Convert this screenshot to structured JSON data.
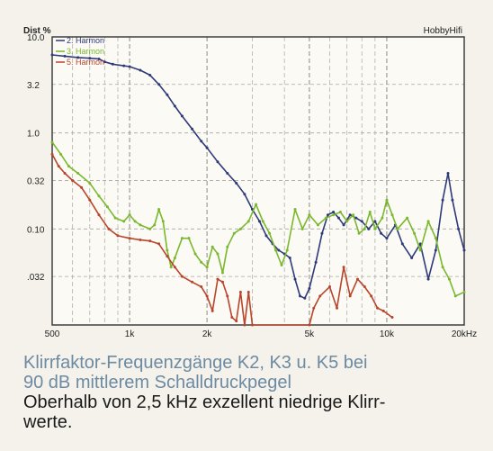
{
  "chart_data": {
    "type": "line",
    "ylabel": "Dist %",
    "xlabel": "",
    "brand": "HobbyHifi",
    "xscale": "log",
    "yscale": "log",
    "xlim": [
      500,
      20000
    ],
    "ylim": [
      0.01,
      10
    ],
    "x_ticks": [
      {
        "value": 500,
        "label": "500"
      },
      {
        "value": 1000,
        "label": "1k"
      },
      {
        "value": 2000,
        "label": "2k"
      },
      {
        "value": 5000,
        "label": "5k"
      },
      {
        "value": 10000,
        "label": "10k"
      },
      {
        "value": 20000,
        "label": "20kHz"
      }
    ],
    "y_ticks": [
      {
        "value": 10,
        "label": "10.0"
      },
      {
        "value": 3.2,
        "label": "3.2"
      },
      {
        "value": 1.0,
        "label": "1.0"
      },
      {
        "value": 0.32,
        "label": "0.32"
      },
      {
        "value": 0.1,
        "label": "0.10"
      },
      {
        "value": 0.032,
        "label": ".032"
      }
    ],
    "grid": true,
    "legend_position": "top-left",
    "series": [
      {
        "name": "2. Harmon",
        "color": "#2e3a7a",
        "points": [
          [
            500,
            6.5
          ],
          [
            560,
            6.3
          ],
          [
            630,
            6.1
          ],
          [
            700,
            6.0
          ],
          [
            760,
            5.9
          ],
          [
            800,
            5.5
          ],
          [
            860,
            5.2
          ],
          [
            950,
            5.0
          ],
          [
            1000,
            4.9
          ],
          [
            1100,
            4.5
          ],
          [
            1200,
            4.0
          ],
          [
            1300,
            3.2
          ],
          [
            1400,
            2.5
          ],
          [
            1500,
            1.9
          ],
          [
            1600,
            1.5
          ],
          [
            1750,
            1.1
          ],
          [
            1900,
            0.82
          ],
          [
            2000,
            0.7
          ],
          [
            2200,
            0.5
          ],
          [
            2400,
            0.38
          ],
          [
            2600,
            0.3
          ],
          [
            2800,
            0.23
          ],
          [
            3000,
            0.16
          ],
          [
            3200,
            0.12
          ],
          [
            3400,
            0.085
          ],
          [
            3600,
            0.07
          ],
          [
            3800,
            0.06
          ],
          [
            4000,
            0.055
          ],
          [
            4200,
            0.05
          ],
          [
            4400,
            0.03
          ],
          [
            4600,
            0.02
          ],
          [
            4800,
            0.019
          ],
          [
            5000,
            0.024
          ],
          [
            5300,
            0.045
          ],
          [
            5600,
            0.09
          ],
          [
            5900,
            0.14
          ],
          [
            6200,
            0.15
          ],
          [
            6500,
            0.13
          ],
          [
            6800,
            0.11
          ],
          [
            7200,
            0.14
          ],
          [
            7600,
            0.13
          ],
          [
            8000,
            0.12
          ],
          [
            8500,
            0.1
          ],
          [
            9000,
            0.12
          ],
          [
            9500,
            0.09
          ],
          [
            10000,
            0.08
          ],
          [
            10800,
            0.11
          ],
          [
            11500,
            0.07
          ],
          [
            12500,
            0.05
          ],
          [
            13500,
            0.07
          ],
          [
            14500,
            0.03
          ],
          [
            15500,
            0.06
          ],
          [
            16500,
            0.2
          ],
          [
            17300,
            0.38
          ],
          [
            18000,
            0.2
          ],
          [
            19000,
            0.1
          ],
          [
            20000,
            0.06
          ]
        ]
      },
      {
        "name": "3. Harmon",
        "color": "#7ab82e",
        "points": [
          [
            500,
            0.8
          ],
          [
            540,
            0.6
          ],
          [
            580,
            0.45
          ],
          [
            630,
            0.38
          ],
          [
            700,
            0.3
          ],
          [
            760,
            0.22
          ],
          [
            820,
            0.17
          ],
          [
            880,
            0.13
          ],
          [
            950,
            0.12
          ],
          [
            1000,
            0.14
          ],
          [
            1050,
            0.12
          ],
          [
            1100,
            0.11
          ],
          [
            1200,
            0.1
          ],
          [
            1250,
            0.11
          ],
          [
            1300,
            0.16
          ],
          [
            1350,
            0.12
          ],
          [
            1400,
            0.06
          ],
          [
            1450,
            0.04
          ],
          [
            1500,
            0.05
          ],
          [
            1600,
            0.08
          ],
          [
            1700,
            0.08
          ],
          [
            1800,
            0.055
          ],
          [
            1900,
            0.045
          ],
          [
            2000,
            0.04
          ],
          [
            2100,
            0.065
          ],
          [
            2200,
            0.055
          ],
          [
            2300,
            0.035
          ],
          [
            2400,
            0.065
          ],
          [
            2550,
            0.09
          ],
          [
            2700,
            0.1
          ],
          [
            2900,
            0.12
          ],
          [
            3100,
            0.18
          ],
          [
            3300,
            0.12
          ],
          [
            3500,
            0.09
          ],
          [
            3700,
            0.06
          ],
          [
            3900,
            0.042
          ],
          [
            4100,
            0.06
          ],
          [
            4400,
            0.16
          ],
          [
            4700,
            0.1
          ],
          [
            5000,
            0.14
          ],
          [
            5400,
            0.11
          ],
          [
            5800,
            0.13
          ],
          [
            6200,
            0.14
          ],
          [
            6600,
            0.15
          ],
          [
            7000,
            0.12
          ],
          [
            7400,
            0.14
          ],
          [
            7800,
            0.09
          ],
          [
            8200,
            0.1
          ],
          [
            8600,
            0.15
          ],
          [
            9000,
            0.1
          ],
          [
            9600,
            0.13
          ],
          [
            10000,
            0.2
          ],
          [
            10500,
            0.14
          ],
          [
            11000,
            0.1
          ],
          [
            12000,
            0.13
          ],
          [
            12800,
            0.09
          ],
          [
            13500,
            0.06
          ],
          [
            14500,
            0.12
          ],
          [
            15500,
            0.08
          ],
          [
            16500,
            0.04
          ],
          [
            17500,
            0.03
          ],
          [
            18500,
            0.02
          ],
          [
            20000,
            0.022
          ]
        ]
      },
      {
        "name": "5. Harmon",
        "color": "#b8452c",
        "points": [
          [
            500,
            0.6
          ],
          [
            530,
            0.45
          ],
          [
            560,
            0.38
          ],
          [
            600,
            0.32
          ],
          [
            650,
            0.27
          ],
          [
            700,
            0.2
          ],
          [
            760,
            0.14
          ],
          [
            830,
            0.1
          ],
          [
            900,
            0.085
          ],
          [
            1000,
            0.08
          ],
          [
            1100,
            0.077
          ],
          [
            1200,
            0.075
          ],
          [
            1300,
            0.07
          ],
          [
            1400,
            0.052
          ],
          [
            1500,
            0.04
          ],
          [
            1600,
            0.032
          ],
          [
            1750,
            0.028
          ],
          [
            1900,
            0.025
          ],
          [
            2000,
            0.02
          ],
          [
            2100,
            0.014
          ],
          [
            2200,
            0.03
          ],
          [
            2300,
            0.028
          ],
          [
            2400,
            0.02
          ],
          [
            2500,
            0.012
          ],
          [
            2600,
            0.011
          ],
          [
            2700,
            0.022
          ],
          [
            2800,
            0.01
          ],
          [
            2900,
            0.022
          ],
          [
            3000,
            0.01
          ],
          [
            5000,
            0.01
          ],
          [
            5200,
            0.015
          ],
          [
            5500,
            0.02
          ],
          [
            6000,
            0.025
          ],
          [
            6400,
            0.015
          ],
          [
            6800,
            0.04
          ],
          [
            7200,
            0.02
          ],
          [
            7700,
            0.03
          ],
          [
            8200,
            0.025
          ],
          [
            8700,
            0.02
          ],
          [
            9200,
            0.015
          ],
          [
            9700,
            0.014
          ],
          [
            10500,
            0.012
          ]
        ]
      }
    ]
  },
  "caption": {
    "line1": "Klirrfaktor-Frequenzgänge K2, K3 u. K5 bei",
    "line2": "90 dB mittlerem Schalldruckpegel",
    "line3": "Oberhalb von 2,5 kHz exzellent niedrige Klirr-",
    "line4": "werte."
  }
}
